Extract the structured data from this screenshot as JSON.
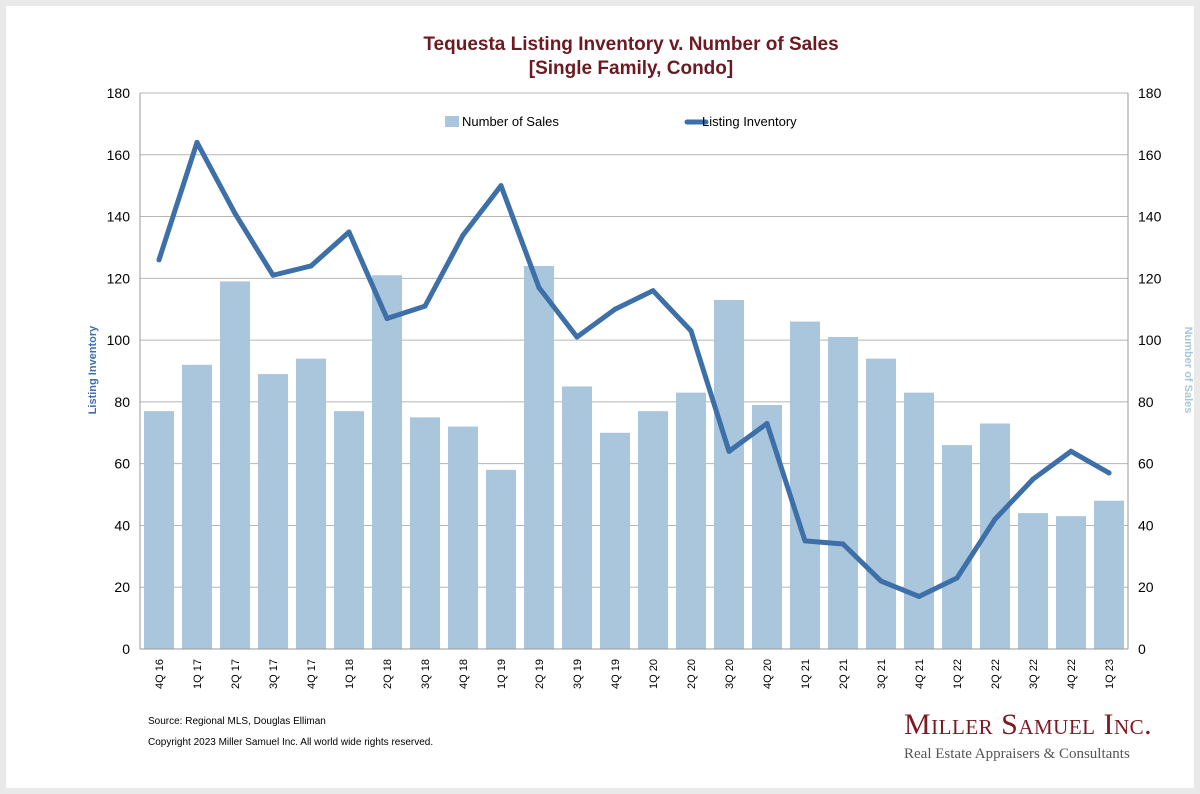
{
  "chart_data": {
    "type": "bar",
    "title_line1": "Tequesta Listing Inventory v. Number of Sales",
    "title_line2": "[Single Family, Condo]",
    "ylabel_left": "Listing Inventory",
    "ylabel_right": "Number of Sales",
    "ylim": [
      0,
      180
    ],
    "yticks": [
      0,
      20,
      40,
      60,
      80,
      100,
      120,
      140,
      160,
      180
    ],
    "grid": true,
    "legend_position": "top",
    "categories": [
      "4Q 16",
      "1Q 17",
      "2Q 17",
      "3Q 17",
      "4Q 17",
      "1Q 18",
      "2Q 18",
      "3Q 18",
      "4Q 18",
      "1Q 19",
      "2Q 19",
      "3Q 19",
      "4Q 19",
      "1Q 20",
      "2Q 20",
      "3Q 20",
      "4Q 20",
      "1Q 21",
      "2Q 21",
      "3Q 21",
      "4Q 21",
      "1Q 22",
      "2Q 22",
      "3Q 22",
      "4Q 22",
      "1Q 23"
    ],
    "series": [
      {
        "name": "Number of Sales",
        "kind": "bar",
        "axis": "right",
        "color": "#a9c6dc",
        "values": [
          77,
          92,
          119,
          89,
          94,
          77,
          121,
          75,
          72,
          58,
          124,
          85,
          70,
          77,
          83,
          113,
          79,
          106,
          101,
          94,
          83,
          66,
          73,
          44,
          43,
          48
        ]
      },
      {
        "name": "Listing Inventory",
        "kind": "line",
        "axis": "left",
        "color": "#3d6fa8",
        "values": [
          126,
          164,
          141,
          121,
          124,
          135,
          107,
          111,
          134,
          150,
          117,
          101,
          110,
          116,
          103,
          64,
          73,
          35,
          34,
          22,
          17,
          23,
          42,
          55,
          64,
          57
        ]
      }
    ]
  },
  "footer": {
    "source": "Source: Regional MLS, Douglas Elliman",
    "copyright": "Copyright 2023 Miller Samuel Inc.  All world wide rights reserved."
  },
  "logo": {
    "name": "Miller Samuel Inc.",
    "tagline": "Real Estate Appraisers & Consultants"
  }
}
